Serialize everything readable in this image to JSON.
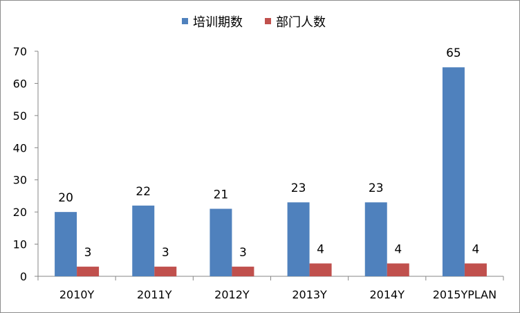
{
  "chart_data": {
    "type": "bar",
    "categories": [
      "2010Y",
      "2011Y",
      "2012Y",
      "2013Y",
      "2014Y",
      "2015YPLAN"
    ],
    "series": [
      {
        "name": "培训期数",
        "values": [
          20,
          22,
          21,
          23,
          23,
          65
        ],
        "color": "#4f81bd"
      },
      {
        "name": "部门人数",
        "values": [
          3,
          3,
          3,
          4,
          4,
          4
        ],
        "color": "#c0504d"
      }
    ],
    "ylim": [
      0,
      70
    ],
    "yticks": [
      0,
      10,
      20,
      30,
      40,
      50,
      60,
      70
    ],
    "grid": false,
    "legend_position": "top",
    "data_labels": true
  }
}
